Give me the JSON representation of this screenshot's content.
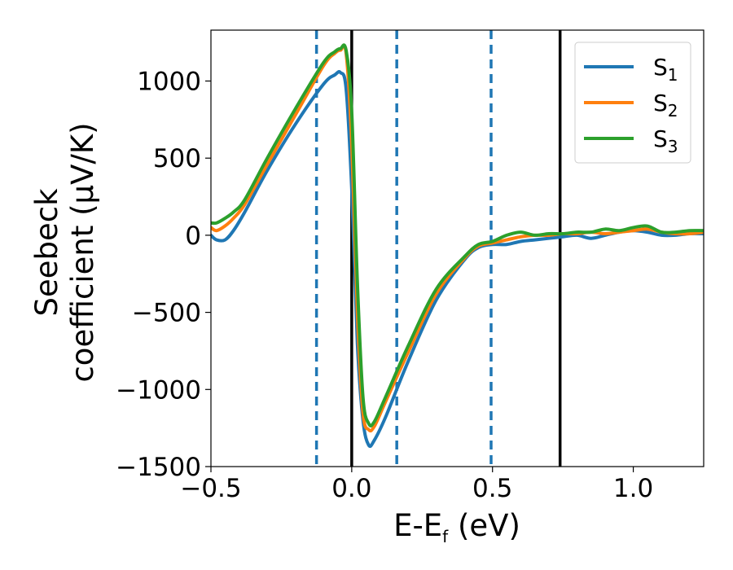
{
  "chart_data": {
    "type": "line",
    "xlabel": "E-E",
    "xlabel_sub": "f",
    "xlabel_unit": " (eV)",
    "ylabel_line1": "Seebeck",
    "ylabel_line2": "coefficient  (μV/K)",
    "xlim": [
      -0.5,
      1.25
    ],
    "ylim": [
      -1500,
      1330
    ],
    "xticks": [
      {
        "value": -0.5,
        "label": "−0.5"
      },
      {
        "value": 0.0,
        "label": "0.0"
      },
      {
        "value": 0.5,
        "label": "0.5"
      },
      {
        "value": 1.0,
        "label": "1.0"
      }
    ],
    "yticks": [
      {
        "value": -1500,
        "label": "−1500"
      },
      {
        "value": -1000,
        "label": "−1000"
      },
      {
        "value": -500,
        "label": "−500"
      },
      {
        "value": 0,
        "label": "0"
      },
      {
        "value": 500,
        "label": "500"
      },
      {
        "value": 1000,
        "label": "1000"
      }
    ],
    "grid": false,
    "legend_position": "top-right",
    "vlines": [
      {
        "x": -0.125,
        "style": "dashed",
        "color": "#1f77b4"
      },
      {
        "x": 0.0,
        "style": "solid",
        "color": "#000000"
      },
      {
        "x": 0.16,
        "style": "dashed",
        "color": "#1f77b4"
      },
      {
        "x": 0.495,
        "style": "dashed",
        "color": "#1f77b4"
      },
      {
        "x": 0.74,
        "style": "solid",
        "color": "#000000"
      }
    ],
    "series": [
      {
        "name": "S",
        "sub": "1",
        "color": "#1f77b4",
        "x": [
          -0.5,
          -0.48,
          -0.45,
          -0.42,
          -0.38,
          -0.3,
          -0.2,
          -0.1,
          -0.06,
          -0.04,
          -0.02,
          0.0,
          0.02,
          0.04,
          0.06,
          0.08,
          0.12,
          0.2,
          0.3,
          0.4,
          0.45,
          0.5,
          0.55,
          0.6,
          0.65,
          0.7,
          0.75,
          0.8,
          0.85,
          0.9,
          0.95,
          1.0,
          1.05,
          1.1,
          1.15,
          1.2,
          1.25
        ],
        "y": [
          0,
          -30,
          -30,
          30,
          150,
          420,
          720,
          980,
          1040,
          1055,
          950,
          300,
          -700,
          -1200,
          -1360,
          -1330,
          -1180,
          -820,
          -420,
          -160,
          -80,
          -60,
          -60,
          -40,
          -30,
          -20,
          -10,
          0,
          -20,
          0,
          20,
          30,
          20,
          0,
          0,
          10,
          10
        ]
      },
      {
        "name": "S",
        "sub": "2",
        "color": "#ff7f0e",
        "x": [
          -0.5,
          -0.48,
          -0.45,
          -0.42,
          -0.38,
          -0.3,
          -0.2,
          -0.1,
          -0.06,
          -0.04,
          -0.02,
          0.0,
          0.02,
          0.04,
          0.06,
          0.08,
          0.12,
          0.2,
          0.3,
          0.4,
          0.45,
          0.5,
          0.55,
          0.6,
          0.65,
          0.7,
          0.75,
          0.8,
          0.85,
          0.9,
          0.95,
          1.0,
          1.05,
          1.1,
          1.15,
          1.2,
          1.25
        ],
        "y": [
          50,
          30,
          60,
          110,
          200,
          460,
          780,
          1100,
          1180,
          1200,
          1180,
          600,
          -500,
          -1150,
          -1260,
          -1240,
          -1080,
          -760,
          -380,
          -150,
          -70,
          -50,
          -30,
          -10,
          0,
          0,
          10,
          10,
          20,
          10,
          20,
          30,
          40,
          20,
          10,
          10,
          20
        ]
      },
      {
        "name": "S",
        "sub": "3",
        "color": "#2ca02c",
        "x": [
          -0.5,
          -0.48,
          -0.45,
          -0.42,
          -0.38,
          -0.3,
          -0.2,
          -0.1,
          -0.06,
          -0.04,
          -0.02,
          0.0,
          0.02,
          0.04,
          0.06,
          0.08,
          0.12,
          0.2,
          0.3,
          0.4,
          0.45,
          0.5,
          0.55,
          0.6,
          0.65,
          0.7,
          0.75,
          0.8,
          0.85,
          0.9,
          0.95,
          1.0,
          1.05,
          1.1,
          1.15,
          1.2,
          1.25
        ],
        "y": [
          80,
          80,
          110,
          150,
          230,
          500,
          820,
          1120,
          1190,
          1210,
          1200,
          800,
          -300,
          -1050,
          -1220,
          -1210,
          -1050,
          -720,
          -350,
          -140,
          -60,
          -40,
          0,
          20,
          0,
          10,
          10,
          20,
          20,
          40,
          30,
          50,
          60,
          20,
          20,
          30,
          30
        ]
      }
    ]
  }
}
